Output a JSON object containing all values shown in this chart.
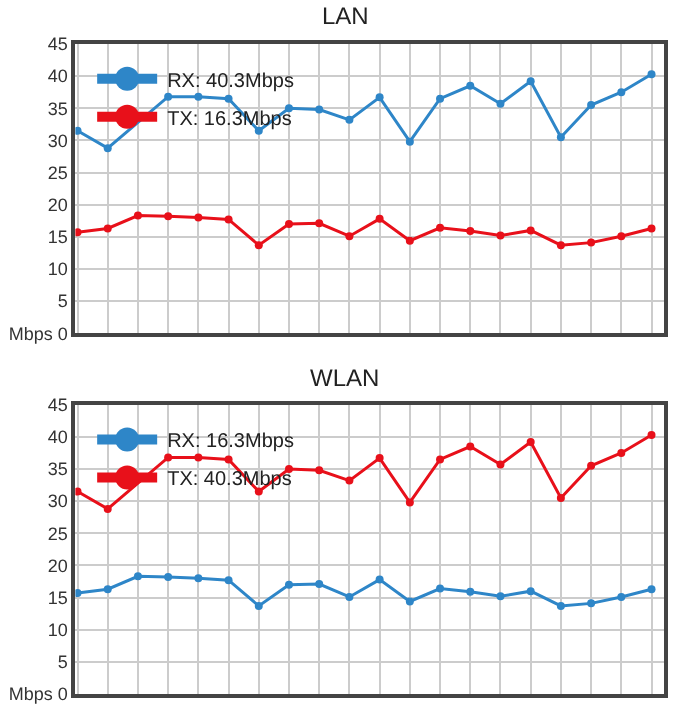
{
  "chart_data": [
    {
      "type": "line",
      "title": "LAN",
      "categories": [
        null,
        null,
        null,
        null,
        null,
        null,
        null,
        null,
        null,
        null,
        null,
        null,
        null,
        null,
        null,
        null,
        null,
        null,
        null,
        null
      ],
      "series": [
        {
          "name": "RX: 40.3Mbps",
          "color": "#2e86c8",
          "values": [
            31.5,
            28.8,
            null,
            36.8,
            36.8,
            36.5,
            31.5,
            35,
            34.8,
            33.2,
            36.7,
            29.8,
            36.5,
            38.5,
            35.7,
            39.2,
            30.5,
            35.5,
            37.5,
            40.3
          ]
        },
        {
          "name": "TX: 16.3Mbps",
          "color": "#e8101a",
          "values": [
            15.7,
            16.3,
            18.3,
            18.2,
            18,
            17.7,
            13.7,
            17,
            17.1,
            15.1,
            17.8,
            14.4,
            16.4,
            15.9,
            15.2,
            16,
            13.7,
            14.1,
            15.1,
            16.3
          ]
        }
      ],
      "ylim": [
        0,
        45
      ],
      "yticks": [
        {
          "value": 0,
          "label": "Mbps 0"
        },
        5,
        10,
        15,
        20,
        25,
        30,
        35,
        40,
        45
      ],
      "grid": true,
      "legend": "top left",
      "marker": "circle",
      "line_style": "solid"
    },
    {
      "type": "line",
      "title": "WLAN",
      "categories": [
        null,
        null,
        null,
        null,
        null,
        null,
        null,
        null,
        null,
        null,
        null,
        null,
        null,
        null,
        null,
        null,
        null,
        null,
        null,
        null
      ],
      "series": [
        {
          "name": "RX: 16.3Mbps",
          "color": "#2e86c8",
          "values": [
            15.7,
            16.3,
            18.3,
            18.2,
            18,
            17.7,
            13.7,
            17,
            17.1,
            15.1,
            17.8,
            14.4,
            16.4,
            15.9,
            15.2,
            16,
            13.7,
            14.1,
            15.1,
            16.3
          ]
        },
        {
          "name": "TX: 40.3Mbps",
          "color": "#e8101a",
          "values": [
            31.5,
            28.8,
            null,
            36.8,
            36.8,
            36.5,
            31.5,
            35,
            34.8,
            33.2,
            36.7,
            29.8,
            36.5,
            38.5,
            35.7,
            39.2,
            30.5,
            35.5,
            37.5,
            40.3
          ]
        }
      ],
      "ylim": [
        0,
        45
      ],
      "yticks": [
        {
          "value": 0,
          "label": "Mbps 0"
        },
        5,
        10,
        15,
        20,
        25,
        30,
        35,
        40,
        45
      ],
      "grid": true,
      "legend": "top left",
      "marker": "circle",
      "line_style": "solid"
    }
  ]
}
